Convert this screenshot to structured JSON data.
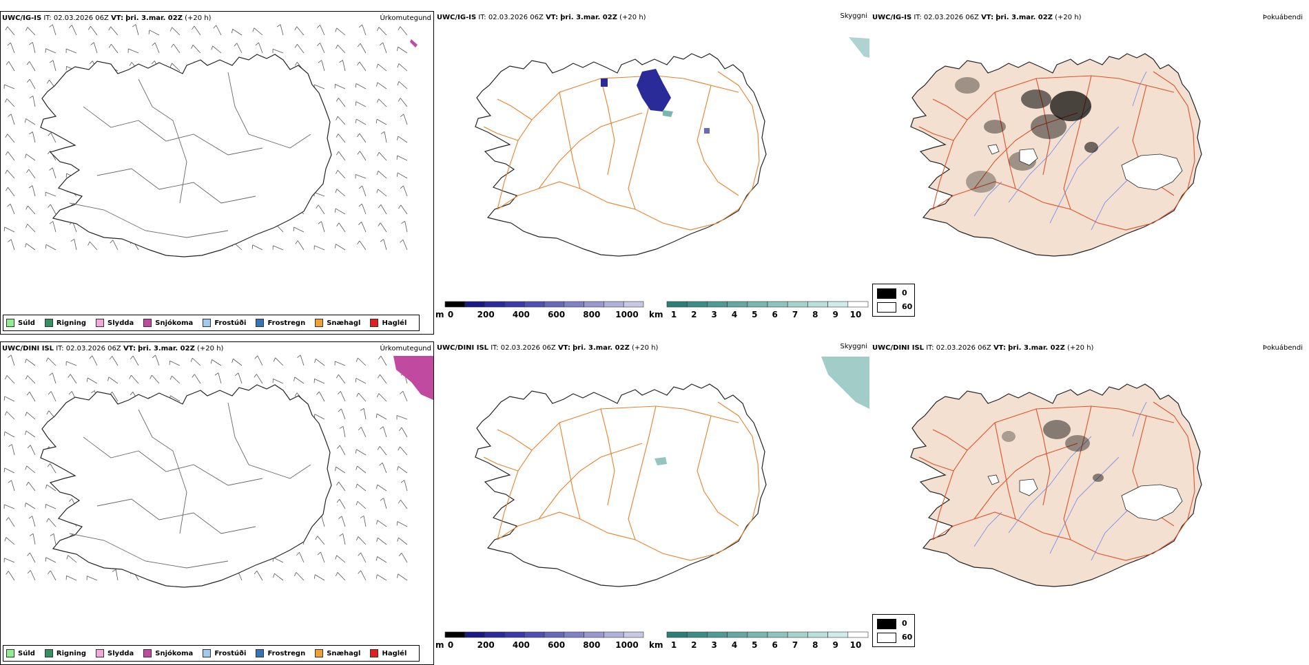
{
  "rows": [
    {
      "model": "UWC/IG-IS",
      "it_label": "IT:",
      "it_value": "02.03.2026 06Z",
      "vt_label": "VT:",
      "vt_value": "þri. 3.mar. 02Z",
      "lead": "(+20 h)"
    },
    {
      "model": "UWC/DINI ISL",
      "it_label": "IT:",
      "it_value": "02.03.2026 06Z",
      "vt_label": "VT:",
      "vt_value": "þri. 3.mar. 02Z",
      "lead": "(+20 h)"
    }
  ],
  "fields": {
    "precip": "Úrkomutegund",
    "visibility": "Skyggni",
    "fog": "Þokuábendi"
  },
  "precip_legend": [
    {
      "label": "Súld",
      "color": "#90ee90"
    },
    {
      "label": "Rigning",
      "color": "#3a8f5f"
    },
    {
      "label": "Slydda",
      "color": "#f2a8d8"
    },
    {
      "label": "Snjókoma",
      "color": "#c04aa0"
    },
    {
      "label": "Frostúði",
      "color": "#9ecbf0"
    },
    {
      "label": "Frostregn",
      "color": "#3575b5"
    },
    {
      "label": "Snæhagl",
      "color": "#f0a030"
    },
    {
      "label": "Haglél",
      "color": "#e02020"
    }
  ],
  "height_scale": {
    "unit": "m",
    "ticks": [
      "0",
      "200",
      "400",
      "600",
      "800",
      "1000"
    ],
    "colors": [
      "#000000",
      "#1a1a80",
      "#2a2a99",
      "#3a3aa8",
      "#5050b0",
      "#6868b8",
      "#8080c4",
      "#9898cc",
      "#b0b0d8",
      "#c8c8e4"
    ]
  },
  "visibility_scale": {
    "unit": "km",
    "ticks": [
      "1",
      "2",
      "3",
      "4",
      "5",
      "6",
      "7",
      "8",
      "9",
      "10"
    ],
    "colors": [
      "#2e7e78",
      "#3f8c86",
      "#529a94",
      "#66a8a2",
      "#7ab6b0",
      "#8fc4be",
      "#a4d2cc",
      "#b9e0da",
      "#d0ece8",
      "#ffffff"
    ]
  },
  "fog_scale": [
    {
      "label": "0",
      "color": "#000000"
    },
    {
      "label": "60",
      "color": "#ffffff"
    }
  ],
  "colors": {
    "roads": "#e8802a",
    "coast": "#222222",
    "rivers": "#7c8ff0",
    "land_fog": "#f3e0d0",
    "snow": "#c04aa0",
    "low_cloud": "#2a2a99",
    "vis_shade": "#7ab6b0"
  }
}
